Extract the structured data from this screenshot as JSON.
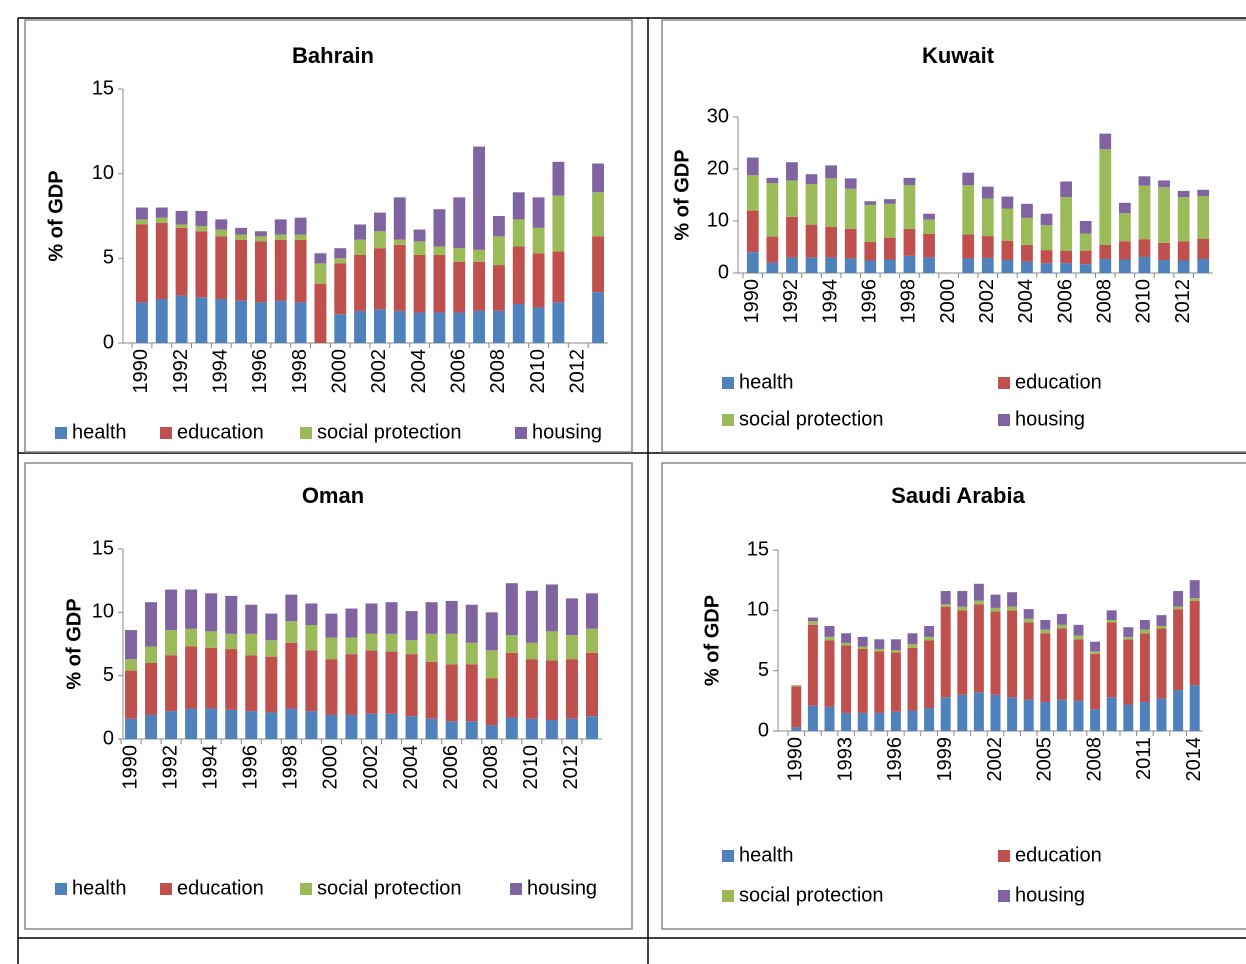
{
  "chart_data": [
    {
      "type": "bar",
      "stacked": true,
      "title": "Bahrain",
      "ylabel": "% of GDP",
      "legend": "bottom",
      "categories": [
        "1990",
        null,
        "1992",
        null,
        "1994",
        null,
        "1996",
        null,
        "1998",
        null,
        "2000",
        null,
        "2002",
        null,
        "2004",
        null,
        "2006",
        null,
        "2008",
        null,
        "2010",
        null,
        "2012",
        null
      ],
      "ylim": [
        0,
        15
      ],
      "yticks": [
        0,
        5,
        10,
        15
      ],
      "series": [
        {
          "name": "health",
          "color": "#4f81bd",
          "values": [
            2.4,
            2.6,
            2.8,
            2.7,
            2.6,
            2.5,
            2.4,
            2.5,
            2.4,
            0,
            1.7,
            1.9,
            2.0,
            1.9,
            1.8,
            1.8,
            1.8,
            1.9,
            1.9,
            2.3,
            2.1,
            2.4,
            null,
            3.0
          ]
        },
        {
          "name": "education",
          "color": "#c0504d",
          "values": [
            4.6,
            4.5,
            4.0,
            3.9,
            3.7,
            3.6,
            3.6,
            3.6,
            3.7,
            3.5,
            3.0,
            3.3,
            3.6,
            3.9,
            3.4,
            3.4,
            3.0,
            2.9,
            2.7,
            3.4,
            3.2,
            3.0,
            null,
            3.3
          ]
        },
        {
          "name": "social protection",
          "color": "#9bbb59",
          "values": [
            0.3,
            0.3,
            0.2,
            0.3,
            0.4,
            0.3,
            0.3,
            0.3,
            0.3,
            1.2,
            0.3,
            0.9,
            1.0,
            0.3,
            0.8,
            0.5,
            0.8,
            0.7,
            1.7,
            1.6,
            1.5,
            3.3,
            null,
            2.6
          ]
        },
        {
          "name": "housing",
          "color": "#8064a2",
          "values": [
            0.7,
            0.6,
            0.8,
            0.9,
            0.6,
            0.4,
            0.3,
            0.9,
            1.0,
            0.6,
            0.6,
            0.9,
            1.1,
            2.5,
            0.7,
            2.2,
            3.0,
            6.1,
            1.2,
            1.6,
            1.8,
            2.0,
            null,
            1.7
          ]
        }
      ]
    },
    {
      "type": "bar",
      "stacked": true,
      "title": "Kuwait",
      "ylabel": "% of GDP",
      "legend": "bottom",
      "categories": [
        "1990",
        null,
        "1992",
        null,
        "1994",
        null,
        "1996",
        null,
        "1998",
        null,
        "2000",
        null,
        "2002",
        null,
        "2004",
        null,
        "2006",
        null,
        "2008",
        null,
        "2010",
        null,
        "2012",
        null
      ],
      "ylim": [
        0,
        30
      ],
      "yticks": [
        0,
        10,
        20,
        30
      ],
      "series": [
        {
          "name": "health",
          "color": "#4f81bd",
          "values": [
            4.0,
            2.0,
            3.0,
            3.0,
            3.0,
            2.8,
            2.4,
            2.6,
            3.3,
            3.0,
            null,
            2.8,
            2.9,
            2.5,
            2.2,
            1.9,
            1.9,
            1.7,
            2.7,
            2.6,
            3.1,
            2.5,
            2.4,
            2.7
          ]
        },
        {
          "name": "education",
          "color": "#c0504d",
          "values": [
            8.0,
            5.0,
            7.8,
            6.3,
            5.9,
            5.7,
            3.6,
            4.2,
            5.2,
            4.5,
            null,
            4.6,
            4.2,
            3.7,
            3.2,
            2.5,
            2.4,
            2.6,
            2.7,
            3.5,
            3.4,
            3.3,
            3.7,
            3.9
          ]
        },
        {
          "name": "social protection",
          "color": "#9bbb59",
          "values": [
            6.8,
            10.3,
            7.0,
            7.8,
            9.3,
            7.7,
            7.1,
            6.5,
            8.4,
            2.8,
            null,
            9.5,
            7.2,
            6.2,
            5.2,
            4.8,
            10.3,
            3.3,
            18.4,
            5.4,
            10.3,
            10.7,
            8.5,
            8.2
          ]
        },
        {
          "name": "housing",
          "color": "#8064a2",
          "values": [
            3.4,
            1.0,
            3.5,
            1.9,
            2.5,
            2.0,
            0.7,
            0.9,
            1.4,
            1.1,
            null,
            2.4,
            2.3,
            2.3,
            2.7,
            2.2,
            3.0,
            2.4,
            3.0,
            2.0,
            1.8,
            1.3,
            1.2,
            1.2
          ]
        }
      ]
    },
    {
      "type": "bar",
      "stacked": true,
      "title": "Oman",
      "ylabel": "% of GDP",
      "legend": "bottom",
      "categories": [
        "1990",
        null,
        "1992",
        null,
        "1994",
        null,
        "1996",
        null,
        "1998",
        null,
        "2000",
        null,
        "2002",
        null,
        "2004",
        null,
        "2006",
        null,
        "2008",
        null,
        "2010",
        null,
        "2012",
        null
      ],
      "ylim": [
        0,
        15
      ],
      "yticks": [
        0,
        5,
        10,
        15
      ],
      "series": [
        {
          "name": "health",
          "color": "#4f81bd",
          "values": [
            1.6,
            1.9,
            2.2,
            2.4,
            2.4,
            2.3,
            2.2,
            2.1,
            2.4,
            2.2,
            1.9,
            1.9,
            2.0,
            2.0,
            1.8,
            1.6,
            1.4,
            1.4,
            1.1,
            1.7,
            1.6,
            1.5,
            1.6,
            1.8
          ]
        },
        {
          "name": "education",
          "color": "#c0504d",
          "values": [
            3.8,
            4.1,
            4.4,
            4.9,
            4.8,
            4.8,
            4.4,
            4.4,
            5.2,
            4.8,
            4.4,
            4.8,
            5.0,
            4.9,
            4.9,
            4.5,
            4.5,
            4.5,
            3.7,
            5.1,
            4.7,
            4.7,
            4.7,
            5.0
          ]
        },
        {
          "name": "social protection",
          "color": "#9bbb59",
          "values": [
            0.9,
            1.3,
            2.0,
            1.4,
            1.3,
            1.2,
            1.7,
            1.3,
            1.7,
            2.0,
            1.7,
            1.3,
            1.3,
            1.4,
            1.1,
            2.2,
            2.4,
            1.7,
            2.2,
            1.4,
            1.3,
            2.3,
            1.9,
            1.9
          ]
        },
        {
          "name": "housing",
          "color": "#8064a2",
          "values": [
            2.3,
            3.5,
            3.2,
            3.1,
            3.0,
            3.0,
            2.3,
            2.1,
            2.1,
            1.7,
            1.9,
            2.3,
            2.4,
            2.5,
            2.3,
            2.5,
            2.6,
            3.0,
            3.0,
            4.1,
            4.1,
            3.7,
            2.9,
            2.8
          ]
        }
      ]
    },
    {
      "type": "bar",
      "stacked": true,
      "title": "Saudi Arabia",
      "ylabel": "% of GDP",
      "legend": "bottom",
      "categories": [
        "1990",
        null,
        null,
        "1993",
        null,
        null,
        "1996",
        null,
        null,
        "1999",
        null,
        null,
        "2002",
        null,
        null,
        "2005",
        null,
        null,
        "2008",
        null,
        null,
        "2011",
        null,
        null,
        "2014"
      ],
      "ylim": [
        0,
        15
      ],
      "yticks": [
        0,
        5,
        10,
        15
      ],
      "series": [
        {
          "name": "health",
          "color": "#4f81bd",
          "values": [
            0.3,
            2.1,
            2.0,
            1.5,
            1.5,
            1.5,
            1.6,
            1.7,
            1.9,
            2.8,
            3.0,
            3.2,
            3.0,
            2.8,
            2.6,
            2.4,
            2.6,
            2.5,
            1.8,
            2.8,
            2.2,
            2.4,
            2.7,
            3.4,
            3.8
          ]
        },
        {
          "name": "education",
          "color": "#c0504d",
          "values": [
            3.4,
            6.7,
            5.5,
            5.6,
            5.3,
            5.1,
            4.9,
            5.2,
            5.6,
            7.5,
            7.0,
            7.3,
            6.9,
            7.2,
            6.4,
            5.7,
            5.9,
            5.1,
            4.6,
            6.2,
            5.4,
            5.7,
            5.8,
            6.7,
            7.0
          ]
        },
        {
          "name": "social protection",
          "color": "#9bbb59",
          "values": [
            0.1,
            0.3,
            0.3,
            0.2,
            0.2,
            0.2,
            0.2,
            0.3,
            0.3,
            0.2,
            0.3,
            0.3,
            0.3,
            0.3,
            0.3,
            0.3,
            0.3,
            0.3,
            0.2,
            0.2,
            0.2,
            0.3,
            0.2,
            0.2,
            0.2
          ]
        },
        {
          "name": "housing",
          "color": "#8064a2",
          "values": [
            0,
            0.3,
            0.9,
            0.8,
            0.8,
            0.8,
            0.9,
            0.9,
            0.9,
            1.1,
            1.3,
            1.4,
            1.1,
            1.2,
            0.8,
            0.8,
            0.9,
            0.9,
            0.8,
            0.8,
            0.8,
            0.8,
            0.9,
            1.3,
            1.5
          ]
        }
      ]
    }
  ]
}
